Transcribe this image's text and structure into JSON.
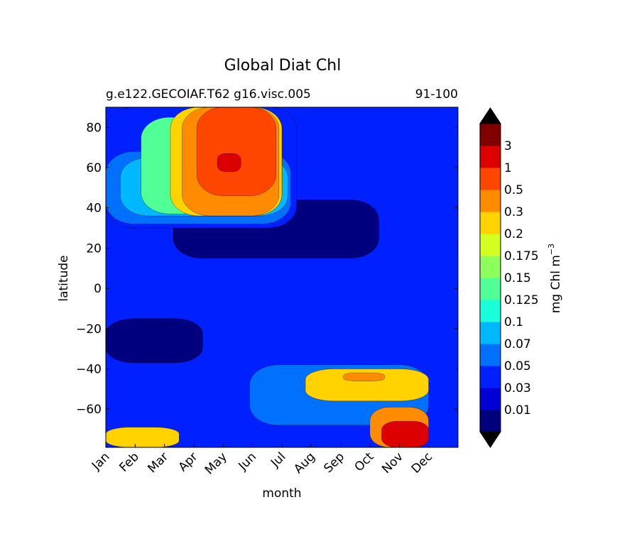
{
  "chart_data": {
    "type": "heatmap",
    "title": "Global Diat Chl",
    "subtitle_left": "g.e122.GECOIAF.T62 g16.visc.005",
    "subtitle_right": "91-100",
    "xlabel": "month",
    "ylabel": "latitude",
    "x_categories": [
      "Jan",
      "Feb",
      "Mar",
      "Apr",
      "May",
      "Jun",
      "Jul",
      "Aug",
      "Sep",
      "Oct",
      "Nov",
      "Dec"
    ],
    "ylim": [
      -79,
      90
    ],
    "y_ticks": [
      80,
      60,
      40,
      20,
      0,
      -20,
      -40,
      -60
    ],
    "colorbar": {
      "label": "mg Chl m",
      "label_superscript": "−3",
      "levels": [
        "0.01",
        "0.03",
        "0.05",
        "0.07",
        "0.1",
        "0.125",
        "0.15",
        "0.175",
        "0.2",
        "0.3",
        "0.5",
        "1",
        "3"
      ],
      "colors": [
        "#00007f",
        "#0000d4",
        "#0020ff",
        "#0070ff",
        "#00b8ff",
        "#18ffdc",
        "#50ff96",
        "#8cff5c",
        "#d2ff20",
        "#ffd200",
        "#ff8c00",
        "#ff4600",
        "#dd0000",
        "#800000"
      ],
      "extend": "both"
    },
    "regions": [
      {
        "name": "subtropics-south-low",
        "level_index": 0,
        "month_range": [
          0,
          3.3
        ],
        "lat_range": [
          -37,
          -15
        ]
      },
      {
        "name": "north-mid-low",
        "level_index": 0,
        "month_range": [
          2.3,
          9.3
        ],
        "lat_range": [
          15,
          44
        ]
      },
      {
        "name": "north-summer-bloom-0.05",
        "level_index": 2,
        "month_range": [
          0,
          6.5
        ],
        "lat_range": [
          30,
          90
        ]
      },
      {
        "name": "north-spring-0.07",
        "level_index": 3,
        "month_range": [
          0,
          6.3
        ],
        "lat_range": [
          32,
          68
        ]
      },
      {
        "name": "north-spring-0.1",
        "level_index": 4,
        "month_range": [
          0.5,
          6.2
        ],
        "lat_range": [
          36,
          65
        ]
      },
      {
        "name": "north-spring-0.15",
        "level_index": 6,
        "month_range": [
          1.2,
          6.0
        ],
        "lat_range": [
          37,
          85
        ]
      },
      {
        "name": "north-spring-0.3",
        "level_index": 9,
        "month_range": [
          2.2,
          6.0
        ],
        "lat_range": [
          36,
          90
        ]
      },
      {
        "name": "north-spring-0.5",
        "level_index": 10,
        "month_range": [
          2.6,
          5.9
        ],
        "lat_range": [
          36,
          90
        ]
      },
      {
        "name": "north-spring-1",
        "level_index": 11,
        "month_range": [
          3.1,
          5.8
        ],
        "lat_range": [
          46,
          90
        ]
      },
      {
        "name": "north-spring-3",
        "level_index": 12,
        "month_range": [
          3.8,
          4.6
        ],
        "lat_range": [
          58,
          67
        ]
      },
      {
        "name": "south-summer-0.07",
        "level_index": 3,
        "month_range": [
          4.9,
          11
        ],
        "lat_range": [
          -68,
          -38
        ]
      },
      {
        "name": "south-summer-0.3",
        "level_index": 9,
        "month_range": [
          6.8,
          11
        ],
        "lat_range": [
          -56,
          -40
        ]
      },
      {
        "name": "south-summer-0.5",
        "level_index": 10,
        "month_range": [
          8.1,
          9.5
        ],
        "lat_range": [
          -46,
          -42
        ]
      },
      {
        "name": "antarctic-bloom-0.5",
        "level_index": 10,
        "month_range": [
          9.0,
          11
        ],
        "lat_range": [
          -79,
          -59
        ]
      },
      {
        "name": "antarctic-bloom-3",
        "level_index": 12,
        "month_range": [
          9.4,
          11
        ],
        "lat_range": [
          -79,
          -66
        ]
      },
      {
        "name": "antarctic-jan-0.3",
        "level_index": 9,
        "month_range": [
          0,
          2.5
        ],
        "lat_range": [
          -79,
          -69
        ]
      }
    ]
  }
}
